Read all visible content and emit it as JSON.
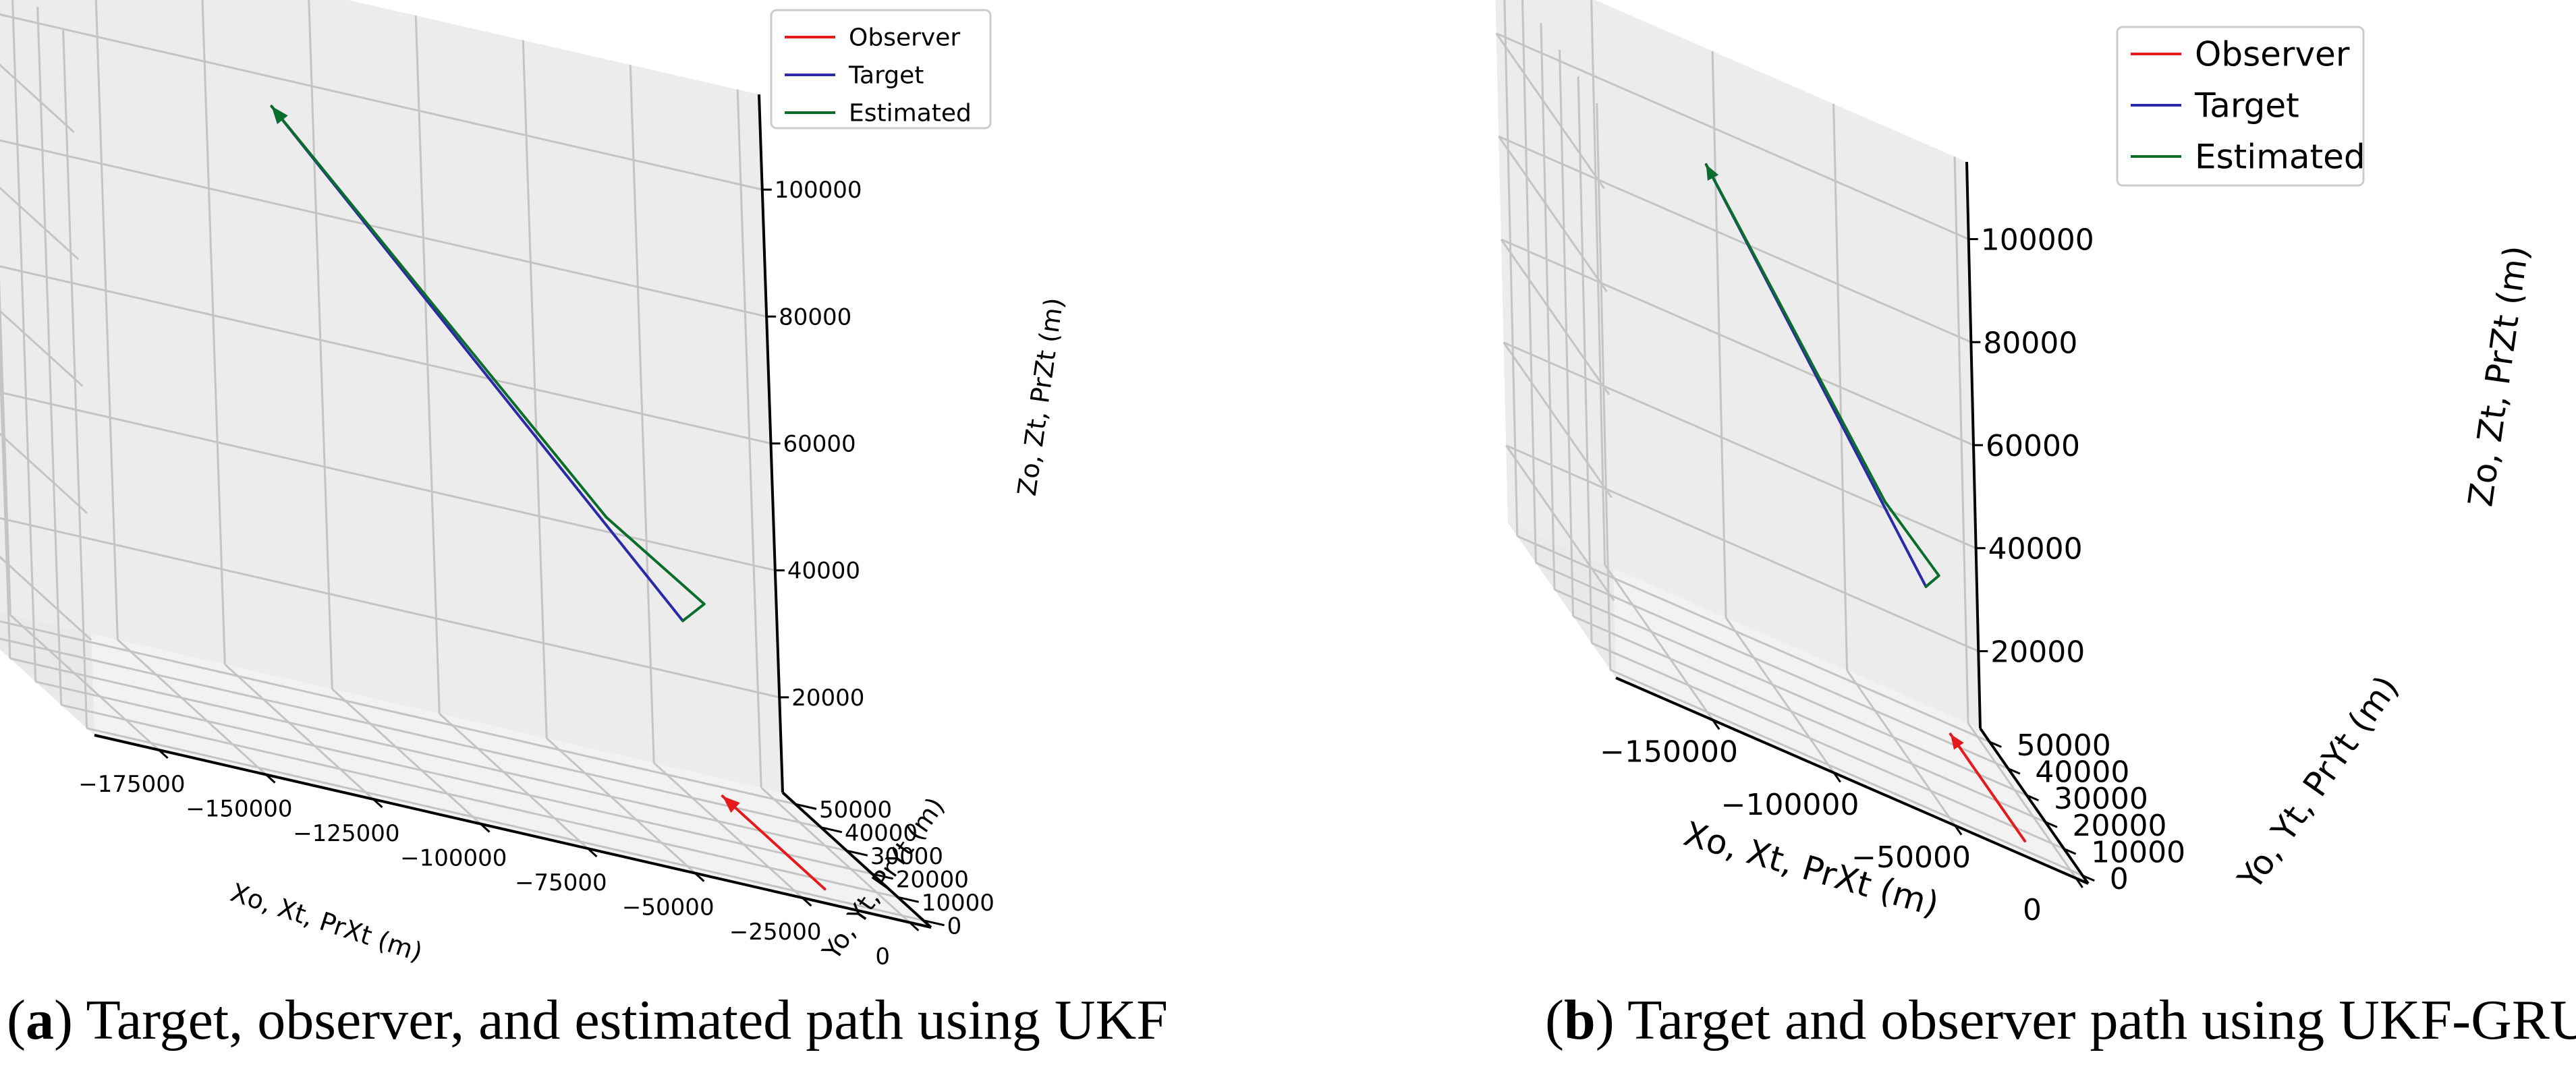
{
  "chart_data": [
    {
      "type": "line3d",
      "panel_letter": "a",
      "caption": "Target, observer, and estimated path using UKF",
      "xlabel": "Xo, Xt, PrXt (m)",
      "ylabel": "Yo, Yt, PrYt (m)",
      "zlabel": "Zo, Zt, PrZt (m)",
      "xticks": [
        -175000,
        -150000,
        -125000,
        -100000,
        -75000,
        -50000,
        -25000,
        0
      ],
      "yticks": [
        0,
        10000,
        20000,
        30000,
        40000,
        50000
      ],
      "zticks": [
        20000,
        40000,
        60000,
        80000,
        100000
      ],
      "xtick_labels": [
        "−175000",
        "−150000",
        "−125000",
        "−100000",
        "−75000",
        "−50000",
        "−25000",
        "0"
      ],
      "ytick_labels": [
        "0",
        "10000",
        "20000",
        "30000",
        "40000",
        "50000"
      ],
      "ztick_labels": [
        "20000",
        "40000",
        "60000",
        "80000",
        "100000"
      ],
      "xlim": [
        -190000,
        5000
      ],
      "ylim": [
        -3000,
        55000
      ],
      "zlim": [
        5000,
        115000
      ],
      "grid": true,
      "legend": {
        "position": "top-right",
        "entries": [
          "Observer",
          "Target",
          "Estimated"
        ]
      },
      "colors": {
        "Observer": "#e41a1c",
        "Target": "#2a2aa8",
        "Estimated": "#0a6e2a"
      },
      "series": [
        {
          "name": "Observer",
          "points": [
            [
              -15000,
              5000,
              5000
            ],
            [
              -15000,
              45000,
              5000
            ]
          ]
        },
        {
          "name": "Target",
          "points": [
            [
              -20000,
              50000,
              30000
            ],
            [
              -130000,
              20000,
              105000
            ]
          ]
        },
        {
          "name": "Estimated",
          "points": [
            [
              -20000,
              50000,
              30000
            ],
            [
              -16000,
              48000,
              34000
            ],
            [
              -40000,
              45000,
              45000
            ],
            [
              -130000,
              20000,
              105000
            ]
          ]
        }
      ]
    },
    {
      "type": "line3d",
      "panel_letter": "b",
      "caption": "Target and observer path using UKF-GRU",
      "xlabel": "Xo, Xt, PrXt (m)",
      "ylabel": "Yo, Yt, PrYt (m)",
      "zlabel": "Zo, Zt, PrZt (m)",
      "xticks": [
        -150000,
        -100000,
        -50000,
        0
      ],
      "yticks": [
        0,
        10000,
        20000,
        30000,
        40000,
        50000
      ],
      "zticks": [
        20000,
        40000,
        60000,
        80000,
        100000
      ],
      "xtick_labels": [
        "−150000",
        "−100000",
        "−50000",
        "0"
      ],
      "ytick_labels": [
        "0",
        "10000",
        "20000",
        "30000",
        "40000",
        "50000"
      ],
      "ztick_labels": [
        "20000",
        "40000",
        "60000",
        "80000",
        "100000"
      ],
      "xlim": [
        -190000,
        5000
      ],
      "ylim": [
        -3000,
        55000
      ],
      "zlim": [
        5000,
        115000
      ],
      "grid": true,
      "legend": {
        "position": "top-right",
        "entries": [
          "Observer",
          "Target",
          "Estimated"
        ]
      },
      "colors": {
        "Observer": "#e41a1c",
        "Target": "#2a2aa8",
        "Estimated": "#0a6e2a"
      },
      "series": [
        {
          "name": "Observer",
          "points": [
            [
              -15000,
              5000,
              5000
            ],
            [
              -15000,
              45000,
              5000
            ]
          ]
        },
        {
          "name": "Target",
          "points": [
            [
              -20000,
              50000,
              30000
            ],
            [
              -130000,
              20000,
              105000
            ]
          ]
        },
        {
          "name": "Estimated",
          "points": [
            [
              -20000,
              50000,
              30000
            ],
            [
              -16000,
              48000,
              34000
            ],
            [
              -40000,
              45000,
              45000
            ],
            [
              -130000,
              20000,
              105000
            ]
          ]
        }
      ]
    }
  ]
}
